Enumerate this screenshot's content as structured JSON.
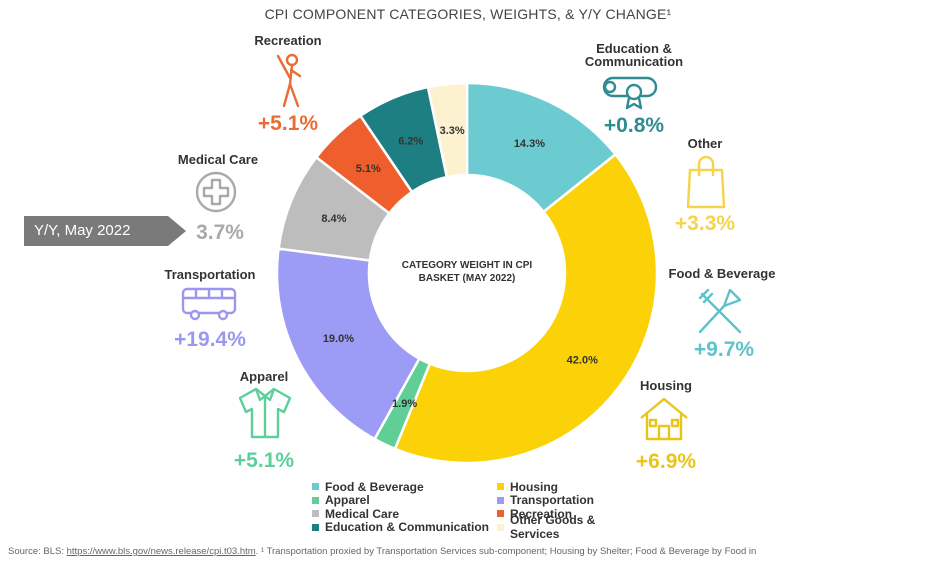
{
  "title": "CPI COMPONENT CATEGORIES, WEIGHTS, & Y/Y CHANGE¹",
  "center_label_line1": "CATEGORY WEIGHT IN CPI",
  "center_label_line2": "BASKET (MAY 2022)",
  "yy_badge": "Y/Y, May 2022",
  "chart_data": {
    "type": "donut",
    "title": "CPI COMPONENT CATEGORIES, WEIGHTS, & Y/Y CHANGE¹",
    "center_label": "CATEGORY WEIGHT IN CPI BASKET (MAY 2022)",
    "slices": [
      {
        "name": "Food & Beverage",
        "weight": 14.3,
        "weight_label": "14.3%",
        "color": "#6ccbd1"
      },
      {
        "name": "Housing",
        "weight": 42.0,
        "weight_label": "42.0%",
        "color": "#fbd207"
      },
      {
        "name": "Apparel",
        "weight": 1.9,
        "weight_label": "1.9%",
        "color": "#5fcf97"
      },
      {
        "name": "Transportation",
        "weight": 19.0,
        "weight_label": "19.0%",
        "color": "#9c9bf5"
      },
      {
        "name": "Medical Care",
        "weight": 8.4,
        "weight_label": "8.4%",
        "color": "#bdbdbd"
      },
      {
        "name": "Recreation",
        "weight": 5.1,
        "weight_label": "5.1%",
        "color": "#ef5f2d"
      },
      {
        "name": "Education & Communication",
        "weight": 6.2,
        "weight_label": "6.2%",
        "color": "#1e7f82"
      },
      {
        "name": "Other Goods & Services",
        "weight": 3.3,
        "weight_label": "3.3%",
        "color": "#fdf2cf"
      }
    ],
    "yy_change": [
      {
        "label": "Food & Beverage",
        "value": "+9.7%",
        "color": "#5cc3cb"
      },
      {
        "label": "Housing",
        "value": "+6.9%",
        "color": "#e9c51a"
      },
      {
        "label": "Apparel",
        "value": "+5.1%",
        "color": "#5ccf9a"
      },
      {
        "label": "Transportation",
        "value": "+19.4%",
        "color": "#9a98ee"
      },
      {
        "label": "Medical Care",
        "value": "3.7%",
        "color": "#a9a9a9"
      },
      {
        "label": "Recreation",
        "value": "+5.1%",
        "color": "#ea6b34"
      },
      {
        "label": "Education & Communication",
        "value": "+0.8%",
        "color": "#2f8c91"
      },
      {
        "label": "Other",
        "value": "+3.3%",
        "color": "#f5d44a"
      }
    ],
    "legend": [
      {
        "name": "Food & Beverage",
        "color": "#6ccbd1"
      },
      {
        "name": "Housing",
        "color": "#fbd207"
      },
      {
        "name": "Apparel",
        "color": "#5fcf97"
      },
      {
        "name": "Transportation",
        "color": "#9c9bf5"
      },
      {
        "name": "Medical Care",
        "color": "#bdbdbd"
      },
      {
        "name": "Recreation",
        "color": "#ef5f2d"
      },
      {
        "name": "Education & Communication",
        "color": "#1e7f82"
      },
      {
        "name": "Other Goods & Services",
        "color": "#fdf2cf"
      }
    ]
  },
  "category_labels": {
    "recreation": "Recreation",
    "education_line1": "Education &",
    "education_line2": "Communication",
    "other": "Other",
    "medical": "Medical Care",
    "food": "Food & Beverage",
    "transportation": "Transportation",
    "housing": "Housing",
    "apparel": "Apparel"
  },
  "icons": {
    "recreation": "golfer-icon",
    "education": "diploma-icon",
    "other": "shopping-bag-icon",
    "medical": "medical-cross-icon",
    "food": "fork-knife-icon",
    "transportation": "bus-icon",
    "housing": "house-icon",
    "apparel": "shirt-icon"
  },
  "footer": {
    "source_prefix": "Source: BLS: ",
    "source_link": "https://www.bls.gov/news.release/cpi.t03.htm",
    "note": ".  ¹ Transportation proxied by Transportation Services sub-component; Housing by Shelter; Food & Beverage by Food in"
  }
}
